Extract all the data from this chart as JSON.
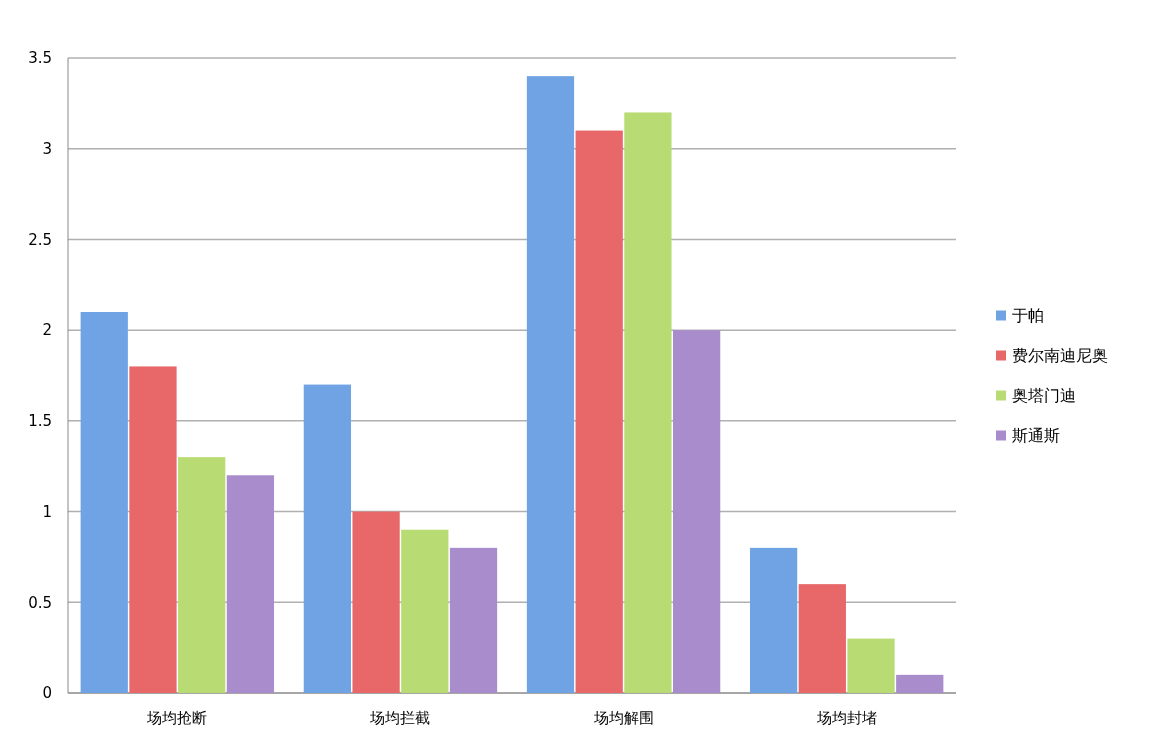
{
  "chart_data": {
    "type": "bar",
    "categories": [
      "场均抢断",
      "场均拦截",
      "场均解围",
      "场均封堵"
    ],
    "series": [
      {
        "name": "于帕",
        "color": "#6fa3e3",
        "values": [
          2.1,
          1.7,
          3.4,
          0.8
        ]
      },
      {
        "name": "费尔南迪尼奥",
        "color": "#e8686a",
        "values": [
          1.8,
          1.0,
          3.1,
          0.6
        ]
      },
      {
        "name": "奥塔门迪",
        "color": "#b9db74",
        "values": [
          1.3,
          0.9,
          3.2,
          0.3
        ]
      },
      {
        "name": "斯通斯",
        "color": "#a88ccb",
        "values": [
          1.2,
          0.8,
          2.0,
          0.1
        ]
      }
    ],
    "ylim": [
      0,
      3.5
    ],
    "yticks": [
      0,
      0.5,
      1,
      1.5,
      2,
      2.5,
      3,
      3.5
    ],
    "grid": "y",
    "legend": "right"
  }
}
